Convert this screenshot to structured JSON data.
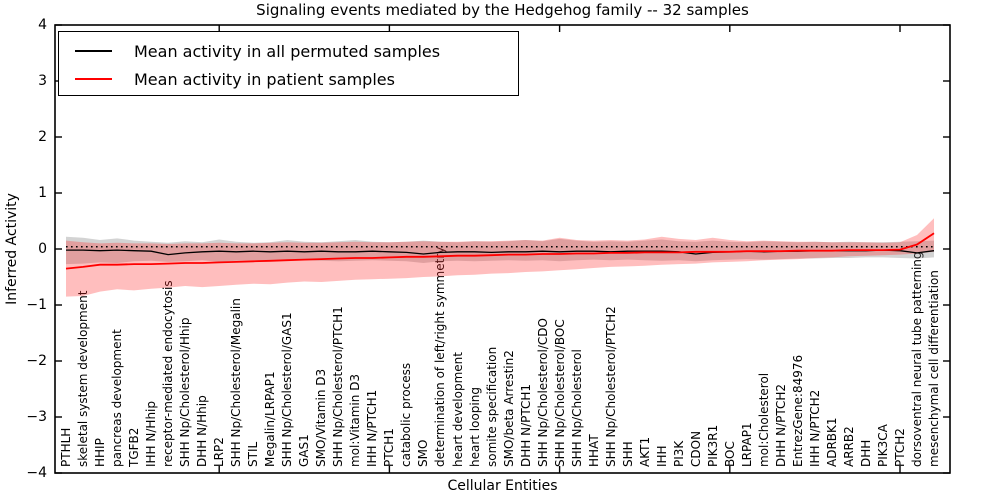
{
  "chart_data": {
    "type": "line",
    "title": "Signaling events mediated by the Hedgehog family -- 32 samples",
    "xlabel": "Cellular Entities",
    "ylabel": "Inferred Activity",
    "ylim": [
      -4,
      4
    ],
    "yticks": [
      4,
      3,
      2,
      1,
      0,
      -1,
      -2,
      -3,
      -4
    ],
    "x_major_ticks": [
      10,
      20,
      30,
      40,
      50
    ],
    "grid": false,
    "legend_position": "upper left",
    "sample_count_in_title": 32,
    "categories": [
      "PTHLH",
      "skeletal system development",
      "HHIP",
      "pancreas development",
      "TGFB2",
      "IHH N/Hhip",
      "receptor-mediated endocytosis",
      "SHH Np/Cholesterol/Hhip",
      "DHH N/Hhip",
      "LRP2",
      "SHH Np/Cholesterol/Megalin",
      "STIL",
      "Megalin/LRPAP1",
      "SHH Np/Cholesterol/GAS1",
      "GAS1",
      "SMO/Vitamin D3",
      "SHH Np/Cholesterol/PTCH1",
      "mol:Vitamin D3",
      "IHH N/PTCH1",
      "PTCH1",
      "catabolic process",
      "SMO",
      "determination of left/right symmetry",
      "heart development",
      "heart looping",
      "somite specification",
      "SMO/beta Arrestin2",
      "DHH N/PTCH1",
      "SHH Np/Cholesterol/CDO",
      "SHH Np/Cholesterol/BOC",
      "SHH Np/Cholesterol",
      "HHAT",
      "SHH Np/Cholesterol/PTCH2",
      "SHH",
      "AKT1",
      "IHH",
      "PI3K",
      "CDON",
      "PIK3R1",
      "BOC",
      "LRPAP1",
      "mol:Cholesterol",
      "DHH N/PTCH2",
      "EntrezGene:84976",
      "IHH N/PTCH2",
      "ADRBK1",
      "ARRB2",
      "DHH",
      "PIK3CA",
      "PTCH2",
      "dorsoventral neural tube patterning",
      "mesenchymal cell differentiation"
    ],
    "series": [
      {
        "name": "Mean activity in all permuted samples",
        "color": "#000000",
        "style": "solid",
        "values": [
          -0.02,
          -0.02,
          -0.03,
          -0.02,
          -0.03,
          -0.04,
          -0.1,
          -0.07,
          -0.05,
          -0.04,
          -0.05,
          -0.04,
          -0.05,
          -0.04,
          -0.05,
          -0.04,
          -0.05,
          -0.05,
          -0.04,
          -0.05,
          -0.06,
          -0.09,
          -0.06,
          -0.05,
          -0.05,
          -0.06,
          -0.05,
          -0.05,
          -0.04,
          -0.05,
          -0.04,
          -0.04,
          -0.05,
          -0.04,
          -0.04,
          -0.04,
          -0.05,
          -0.09,
          -0.06,
          -0.05,
          -0.04,
          -0.05,
          -0.04,
          -0.04,
          -0.03,
          -0.03,
          -0.03,
          -0.03,
          -0.02,
          -0.03,
          -0.07,
          -0.03
        ]
      },
      {
        "name": "Mean activity in patient samples",
        "color": "#ff0000",
        "style": "solid",
        "values": [
          -0.35,
          -0.32,
          -0.28,
          -0.28,
          -0.27,
          -0.27,
          -0.26,
          -0.25,
          -0.25,
          -0.24,
          -0.23,
          -0.22,
          -0.21,
          -0.2,
          -0.19,
          -0.18,
          -0.17,
          -0.16,
          -0.16,
          -0.15,
          -0.14,
          -0.14,
          -0.13,
          -0.12,
          -0.12,
          -0.11,
          -0.1,
          -0.1,
          -0.09,
          -0.09,
          -0.08,
          -0.08,
          -0.07,
          -0.07,
          -0.06,
          -0.06,
          -0.06,
          -0.05,
          -0.05,
          -0.05,
          -0.04,
          -0.04,
          -0.04,
          -0.03,
          -0.03,
          -0.03,
          -0.02,
          -0.02,
          -0.02,
          -0.01,
          0.08,
          0.28
        ]
      },
      {
        "name": "significance threshold (dotted)",
        "color": "#000000",
        "style": "dotted",
        "value": 0.04
      }
    ],
    "bands": [
      {
        "name": "permuted samples std range",
        "color": "rgba(110,110,110,0.30)",
        "upper": [
          0.22,
          0.2,
          0.16,
          0.19,
          0.15,
          0.13,
          0.11,
          0.14,
          0.12,
          0.17,
          0.13,
          0.11,
          0.12,
          0.16,
          0.13,
          0.12,
          0.14,
          0.16,
          0.13,
          0.12,
          0.13,
          0.15,
          0.13,
          0.12,
          0.14,
          0.13,
          0.14,
          0.16,
          0.14,
          0.18,
          0.15,
          0.13,
          0.14,
          0.13,
          0.15,
          0.17,
          0.14,
          0.13,
          0.15,
          0.13,
          0.12,
          0.14,
          0.13,
          0.12,
          0.13,
          0.12,
          0.13,
          0.12,
          0.12,
          0.13,
          0.14,
          0.15
        ],
        "lower": [
          -0.27,
          -0.26,
          -0.24,
          -0.25,
          -0.22,
          -0.21,
          -0.23,
          -0.22,
          -0.2,
          -0.23,
          -0.21,
          -0.2,
          -0.22,
          -0.21,
          -0.2,
          -0.21,
          -0.22,
          -0.21,
          -0.2,
          -0.21,
          -0.22,
          -0.25,
          -0.22,
          -0.21,
          -0.22,
          -0.21,
          -0.2,
          -0.21,
          -0.2,
          -0.22,
          -0.2,
          -0.19,
          -0.2,
          -0.19,
          -0.2,
          -0.21,
          -0.2,
          -0.22,
          -0.2,
          -0.19,
          -0.18,
          -0.19,
          -0.18,
          -0.17,
          -0.17,
          -0.16,
          -0.16,
          -0.15,
          -0.15,
          -0.16,
          -0.17,
          -0.15
        ]
      },
      {
        "name": "patient samples std range",
        "color": "rgba(255,40,40,0.30)",
        "upper": [
          0.15,
          0.12,
          0.1,
          0.11,
          0.1,
          0.1,
          0.09,
          0.1,
          0.1,
          0.11,
          0.1,
          0.1,
          0.11,
          0.12,
          0.11,
          0.11,
          0.12,
          0.13,
          0.12,
          0.12,
          0.13,
          0.14,
          0.13,
          0.13,
          0.14,
          0.14,
          0.15,
          0.16,
          0.15,
          0.2,
          0.16,
          0.15,
          0.16,
          0.15,
          0.17,
          0.22,
          0.18,
          0.16,
          0.2,
          0.16,
          0.14,
          0.15,
          0.14,
          0.13,
          0.13,
          0.12,
          0.12,
          0.12,
          0.11,
          0.12,
          0.25,
          0.55
        ],
        "lower": [
          -0.85,
          -0.84,
          -0.76,
          -0.72,
          -0.74,
          -0.71,
          -0.69,
          -0.66,
          -0.68,
          -0.66,
          -0.64,
          -0.62,
          -0.63,
          -0.6,
          -0.58,
          -0.59,
          -0.57,
          -0.55,
          -0.54,
          -0.53,
          -0.52,
          -0.5,
          -0.49,
          -0.47,
          -0.46,
          -0.44,
          -0.43,
          -0.41,
          -0.4,
          -0.38,
          -0.36,
          -0.34,
          -0.32,
          -0.31,
          -0.3,
          -0.28,
          -0.27,
          -0.26,
          -0.24,
          -0.23,
          -0.22,
          -0.2,
          -0.19,
          -0.18,
          -0.16,
          -0.15,
          -0.13,
          -0.12,
          -0.11,
          -0.1,
          -0.08,
          -0.05
        ]
      }
    ]
  }
}
